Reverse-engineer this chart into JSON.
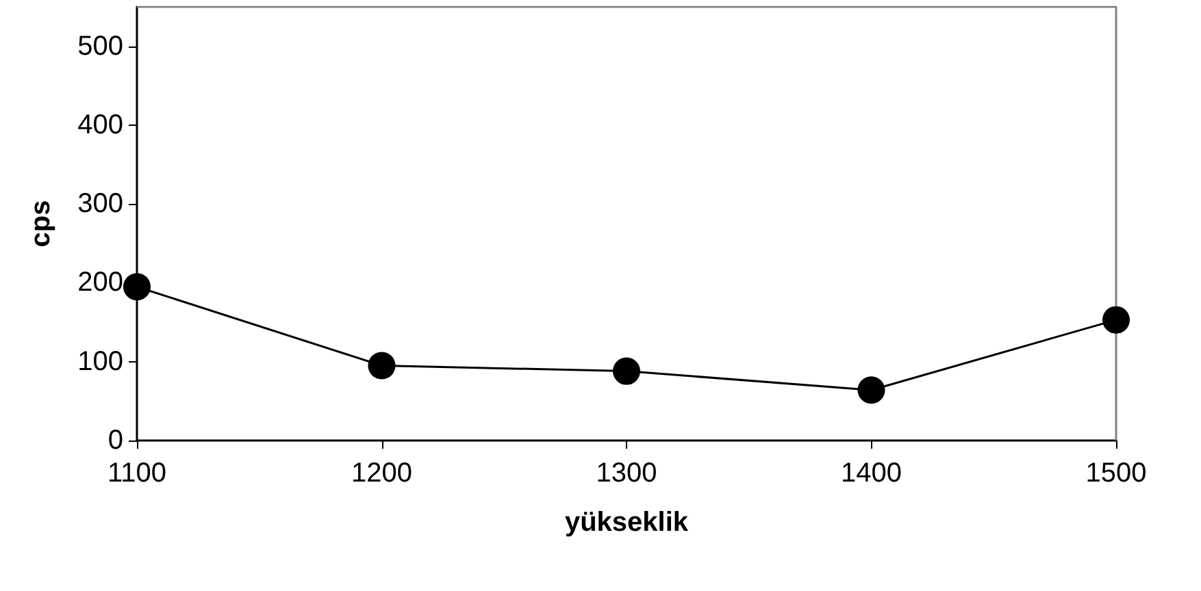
{
  "chart_data": {
    "type": "line",
    "xlabel": "yükseklik",
    "ylabel": "cps",
    "x": [
      1100,
      1200,
      1300,
      1400,
      1500
    ],
    "series": [
      {
        "color": "#000000",
        "values": [
          195,
          95,
          88,
          64,
          153
        ]
      }
    ],
    "xlim": [
      1100,
      1500
    ],
    "xticks": [
      1100,
      1200,
      1300,
      1400,
      1500
    ],
    "ylim": [
      0,
      550
    ],
    "yticks": [
      0,
      100,
      200,
      300,
      400,
      500
    ],
    "grid": false,
    "marker": "circle",
    "line_style": "solid"
  }
}
